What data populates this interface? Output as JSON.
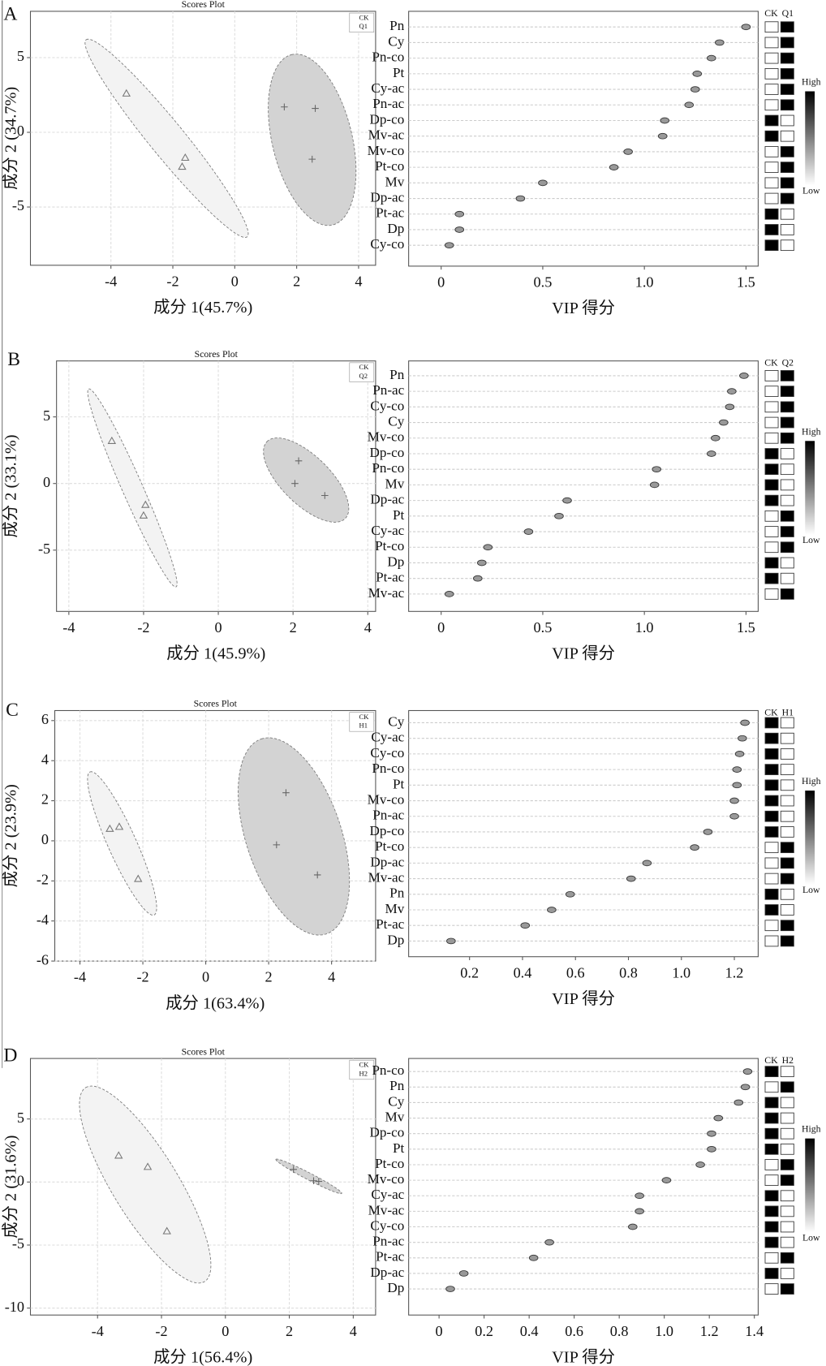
{
  "panel_labels": [
    "A",
    "B",
    "C",
    "D"
  ],
  "chart_data": [
    {
      "type": "scatter",
      "title": "Scores Plot",
      "xlabel": "成分 1(45.7%)",
      "ylabel": "成分 2 (34.7%)",
      "xlim": [
        -6.6,
        4.55
      ],
      "ylim": [
        -8.9,
        8.1
      ],
      "xticks": [
        -4,
        -2,
        0,
        2,
        4
      ],
      "yticks": [
        -5,
        0,
        5
      ],
      "grid": true,
      "series": [
        {
          "name": "CK",
          "marker": "triangle",
          "color": "#777777",
          "ellipse_color": "#f3f3f3",
          "x": [
            -3.5,
            -1.6,
            -1.7
          ],
          "y": [
            2.6,
            -1.7,
            -2.3
          ],
          "ellipse": {
            "center": [
              -2.2,
              -0.4
            ],
            "major_end": [
              -4.8,
              6.2
            ],
            "minor_end": [
              -1.76,
              0.33
            ]
          }
        },
        {
          "name": "Q1",
          "marker": "plus",
          "color": "#666666",
          "ellipse_color": "#d3d3d3",
          "x": [
            1.6,
            2.6,
            2.5
          ],
          "y": [
            1.7,
            1.6,
            -1.8
          ],
          "ellipse": {
            "center": [
              2.5,
              -0.5
            ],
            "major_end": [
              1.83,
              5.2
            ],
            "minor_end": [
              3.75,
              0.17
            ]
          }
        }
      ]
    },
    {
      "type": "vip",
      "xlabel": "VIP 得分",
      "xlim": [
        -0.16,
        1.56
      ],
      "xticks": [
        0,
        0.5,
        {
          "value": 1,
          "label": "1.0"
        },
        1.5
      ],
      "categories": [
        "Pn",
        "Cy",
        "Pn-co",
        "Pt",
        "Cy-ac",
        "Pn-ac",
        "Dp-co",
        "Mv-ac",
        "Mv-co",
        "Pt-co",
        "Mv",
        "Dp-ac",
        "Pt-ac",
        "Dp",
        "Cy-co"
      ],
      "values": [
        1.5,
        1.37,
        1.33,
        1.26,
        1.25,
        1.22,
        1.1,
        1.09,
        0.92,
        0.85,
        0.5,
        0.39,
        0.09,
        0.09,
        0.04
      ],
      "heatmap": {
        "columns": [
          "CK",
          "Q1"
        ],
        "values": [
          [
            0,
            1
          ],
          [
            0,
            1
          ],
          [
            0,
            1
          ],
          [
            0,
            1
          ],
          [
            0,
            1
          ],
          [
            0,
            1
          ],
          [
            1,
            0
          ],
          [
            1,
            0
          ],
          [
            0,
            1
          ],
          [
            0,
            1
          ],
          [
            0,
            1
          ],
          [
            0,
            1
          ],
          [
            1,
            0
          ],
          [
            1,
            0
          ],
          [
            1,
            0
          ]
        ]
      },
      "scale_labels": [
        "High",
        "Low"
      ]
    },
    {
      "type": "scatter",
      "title": "Scores Plot",
      "xlabel": "成分 1(45.9%)",
      "ylabel": "成分 2 (33.1%)",
      "xlim": [
        -4.33,
        4.21
      ],
      "ylim": [
        -9.6,
        9.2
      ],
      "xticks": [
        -4,
        -2,
        0,
        2,
        4
      ],
      "yticks": [
        -5,
        0,
        5
      ],
      "grid": true,
      "series": [
        {
          "name": "CK",
          "marker": "triangle",
          "color": "#777777",
          "ellipse_color": "#f3f3f3",
          "x": [
            -2.85,
            -1.95,
            -2.0
          ],
          "y": [
            3.2,
            -1.6,
            -2.4
          ],
          "ellipse": {
            "center": [
              -2.3,
              -0.33
            ],
            "major_end": [
              -3.47,
              7.1
            ],
            "minor_end": [
              -2.05,
              -0.01
            ]
          }
        },
        {
          "name": "Q2",
          "marker": "plus",
          "color": "#666666",
          "ellipse_color": "#d3d3d3",
          "x": [
            2.15,
            2.05,
            2.85
          ],
          "y": [
            1.7,
            0.0,
            -0.9
          ],
          "ellipse": {
            "center": [
              2.35,
              0.26
            ],
            "major_end": [
              1.3,
              3.14
            ],
            "minor_end": [
              2.8,
              1.57
            ]
          }
        }
      ]
    },
    {
      "type": "vip",
      "xlabel": "VIP 得分",
      "xlim": [
        -0.16,
        1.56
      ],
      "xticks": [
        0,
        0.5,
        {
          "value": 1,
          "label": "1.0"
        },
        1.5
      ],
      "categories": [
        "Pn",
        "Pn-ac",
        "Cy-co",
        "Cy",
        "Mv-co",
        "Dp-co",
        "Pn-co",
        "Mv",
        "Dp-ac",
        "Pt",
        "Cy-ac",
        "Pt-co",
        "Dp",
        "Pt-ac",
        "Mv-ac"
      ],
      "values": [
        1.49,
        1.43,
        1.42,
        1.39,
        1.35,
        1.33,
        1.06,
        1.05,
        0.62,
        0.58,
        0.43,
        0.23,
        0.2,
        0.18,
        0.04
      ],
      "heatmap": {
        "columns": [
          "CK",
          "Q2"
        ],
        "values": [
          [
            0,
            1
          ],
          [
            0,
            1
          ],
          [
            0,
            1
          ],
          [
            0,
            1
          ],
          [
            0,
            1
          ],
          [
            1,
            0
          ],
          [
            1,
            0
          ],
          [
            1,
            0
          ],
          [
            1,
            0
          ],
          [
            0,
            1
          ],
          [
            0,
            1
          ],
          [
            0,
            1
          ],
          [
            1,
            0
          ],
          [
            1,
            0
          ],
          [
            0,
            1
          ]
        ]
      },
      "scale_labels": [
        "High",
        "Low"
      ]
    },
    {
      "type": "scatter",
      "title": "Scores Plot",
      "xlabel": "成分 1(63.4%)",
      "ylabel": "成分 2 (23.9%)",
      "xlim": [
        -4.8,
        5.4
      ],
      "ylim": [
        -6,
        6.5
      ],
      "xticks": [
        -4,
        -2,
        0,
        2,
        4
      ],
      "yticks": [
        -6,
        -4,
        -2,
        0,
        2,
        4,
        6
      ],
      "grid": true,
      "series": [
        {
          "name": "CK",
          "marker": "triangle",
          "color": "#777777",
          "ellipse_color": "#f3f3f3",
          "x": [
            -3.05,
            -2.75,
            -2.15
          ],
          "y": [
            0.6,
            0.7,
            -1.9
          ],
          "ellipse": {
            "center": [
              -2.66,
              -0.13
            ],
            "major_end": [
              -3.68,
              3.44
            ],
            "minor_end": [
              -2.25,
              0.16
            ]
          }
        },
        {
          "name": "H1",
          "marker": "plus",
          "color": "#666666",
          "ellipse_color": "#d3d3d3",
          "x": [
            2.55,
            2.25,
            3.55
          ],
          "y": [
            2.4,
            -0.2,
            -1.7
          ],
          "ellipse": {
            "center": [
              2.8,
              0.22
            ],
            "major_end": [
              1.77,
              5.09
            ],
            "minor_end": [
              4.24,
              0.96
            ]
          }
        }
      ]
    },
    {
      "type": "vip",
      "xlabel": "VIP 得分",
      "xlim": [
        -0.03,
        1.29
      ],
      "xticks": [
        0.2,
        0.4,
        0.6,
        0.8,
        {
          "value": 1,
          "label": "1.0"
        },
        1.2
      ],
      "categories": [
        "Cy",
        "Cy-ac",
        "Cy-co",
        "Pn-co",
        "Pt",
        "Mv-co",
        "Pn-ac",
        "Dp-co",
        "Pt-co",
        "Dp-ac",
        "Mv-ac",
        "Pn",
        "Mv",
        "Pt-ac",
        "Dp"
      ],
      "values": [
        1.24,
        1.23,
        1.22,
        1.21,
        1.21,
        1.2,
        1.2,
        1.1,
        1.05,
        0.87,
        0.81,
        0.58,
        0.51,
        0.41,
        0.13
      ],
      "heatmap": {
        "columns": [
          "CK",
          "H1"
        ],
        "values": [
          [
            1,
            0
          ],
          [
            1,
            0
          ],
          [
            1,
            0
          ],
          [
            1,
            0
          ],
          [
            1,
            0
          ],
          [
            1,
            0
          ],
          [
            1,
            0
          ],
          [
            1,
            0
          ],
          [
            0,
            1
          ],
          [
            0,
            1
          ],
          [
            0,
            1
          ],
          [
            1,
            0
          ],
          [
            1,
            0
          ],
          [
            0,
            1
          ],
          [
            0,
            1
          ]
        ]
      },
      "scale_labels": [
        "High",
        "Low"
      ]
    },
    {
      "type": "scatter",
      "title": "Scores Plot",
      "xlabel": "成分 1(56.4%)",
      "ylabel": "成分 2 (31.6%)",
      "xlim": [
        -6.1,
        4.7
      ],
      "ylim": [
        -10.55,
        9.8
      ],
      "xticks": [
        -4,
        -2,
        0,
        2,
        4
      ],
      "yticks": [
        -10,
        -5,
        0,
        5
      ],
      "grid": true,
      "series": [
        {
          "name": "CK",
          "marker": "triangle",
          "color": "#777777",
          "ellipse_color": "#f3f3f3",
          "x": [
            -3.34,
            -2.43,
            -1.83
          ],
          "y": [
            2.1,
            1.2,
            -3.9
          ],
          "ellipse": {
            "center": [
              -2.51,
              -0.2
            ],
            "major_end": [
              -4.37,
              7.5
            ],
            "minor_end": [
              -1.63,
              1.15
            ]
          }
        },
        {
          "name": "H2",
          "marker": "plus",
          "color": "#666666",
          "ellipse_color": "#d3d3d3",
          "x": [
            2.13,
            2.76,
            2.92
          ],
          "y": [
            1.0,
            0.1,
            0.05
          ],
          "ellipse": {
            "center": [
              2.61,
              0.45
            ],
            "major_end": [
              1.58,
              1.8
            ],
            "minor_end": [
              2.66,
              0.69
            ]
          }
        }
      ]
    },
    {
      "type": "vip",
      "xlabel": "VIP 得分",
      "xlim": [
        -0.135,
        1.417
      ],
      "xticks": [
        0,
        0.2,
        0.4,
        0.6,
        0.8,
        {
          "value": 1,
          "label": "1.0"
        },
        1.2,
        1.4
      ],
      "categories": [
        "Pn-co",
        "Pn",
        "Cy",
        "Mv",
        "Dp-co",
        "Pt",
        "Pt-co",
        "Mv-co",
        "Cy-ac",
        "Mv-ac",
        "Cy-co",
        "Pn-ac",
        "Pt-ac",
        "Dp-ac",
        "Dp"
      ],
      "values": [
        1.37,
        1.36,
        1.33,
        1.24,
        1.21,
        1.21,
        1.16,
        1.01,
        0.89,
        0.89,
        0.86,
        0.49,
        0.42,
        0.11,
        0.05
      ],
      "heatmap": {
        "columns": [
          "CK",
          "H2"
        ],
        "values": [
          [
            1,
            0
          ],
          [
            0,
            1
          ],
          [
            1,
            0
          ],
          [
            1,
            0
          ],
          [
            1,
            0
          ],
          [
            1,
            0
          ],
          [
            0,
            1
          ],
          [
            0,
            1
          ],
          [
            1,
            0
          ],
          [
            1,
            0
          ],
          [
            1,
            0
          ],
          [
            1,
            0
          ],
          [
            0,
            1
          ],
          [
            1,
            0
          ],
          [
            0,
            1
          ]
        ]
      },
      "scale_labels": [
        "High",
        "Low"
      ]
    }
  ]
}
